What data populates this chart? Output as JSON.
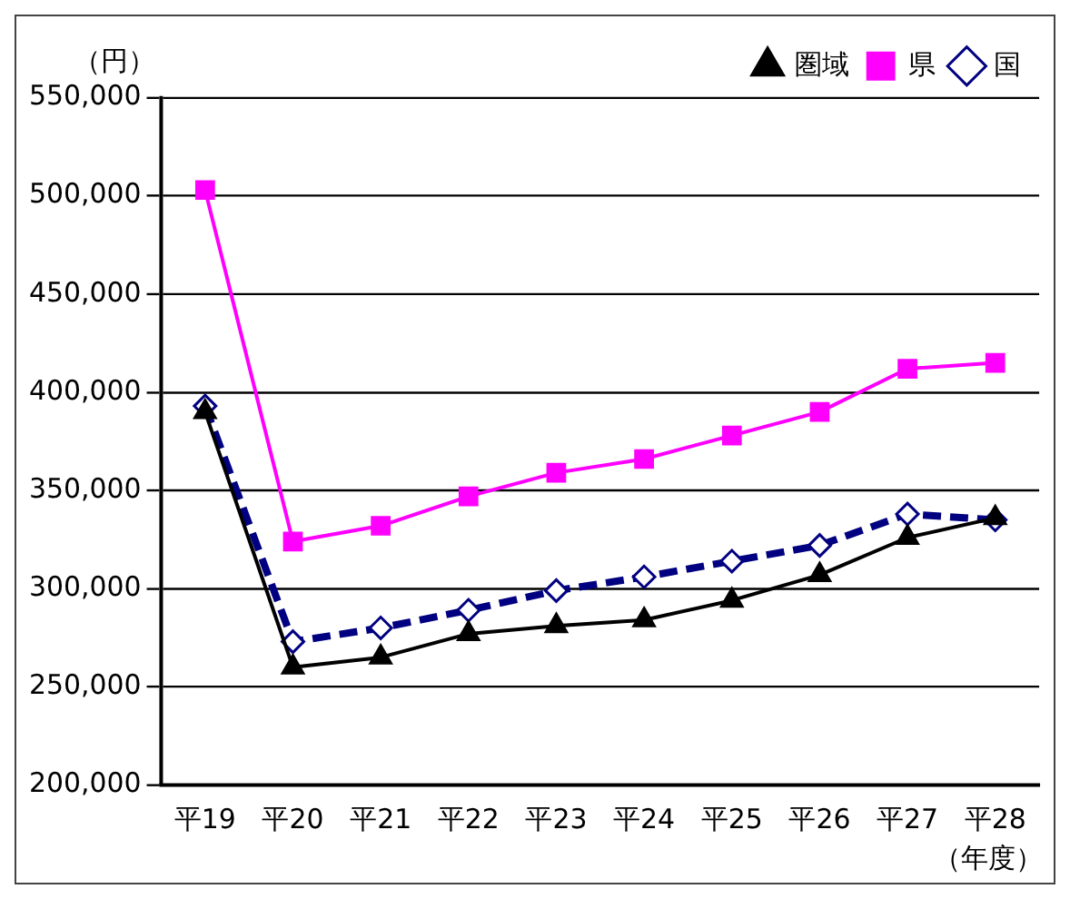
{
  "chart_data": {
    "type": "line",
    "ylabel": "（円）",
    "xlabel": "（年度）",
    "categories": [
      "平19",
      "平20",
      "平21",
      "平22",
      "平23",
      "平24",
      "平25",
      "平26",
      "平27",
      "平28"
    ],
    "series": [
      {
        "name": "国",
        "color": "#000080",
        "marker": "diamond",
        "line_style": "dashed",
        "values": [
          393000,
          273000,
          280000,
          289000,
          299000,
          306000,
          314000,
          322000,
          338000,
          335000
        ]
      },
      {
        "name": "県",
        "color": "#ff00ff",
        "marker": "square",
        "line_style": "solid",
        "values": [
          503000,
          324000,
          332000,
          347000,
          359000,
          366000,
          378000,
          390000,
          412000,
          415000
        ]
      },
      {
        "name": "圏域",
        "color": "#000000",
        "marker": "triangle",
        "line_style": "solid",
        "values": [
          390000,
          260000,
          265000,
          277000,
          281000,
          284000,
          294000,
          307000,
          326000,
          336000
        ]
      }
    ],
    "ylim": [
      200000,
      550000
    ],
    "yticks": [
      {
        "value": 200000,
        "label": "200,000"
      },
      {
        "value": 250000,
        "label": "250,000"
      },
      {
        "value": 300000,
        "label": "300,000"
      },
      {
        "value": 350000,
        "label": "350,000"
      },
      {
        "value": 400000,
        "label": "400,000"
      },
      {
        "value": 450000,
        "label": "450,000"
      },
      {
        "value": 500000,
        "label": "500,000"
      },
      {
        "value": 550000,
        "label": "550,000"
      }
    ],
    "grid": "y",
    "legend": "top right"
  }
}
